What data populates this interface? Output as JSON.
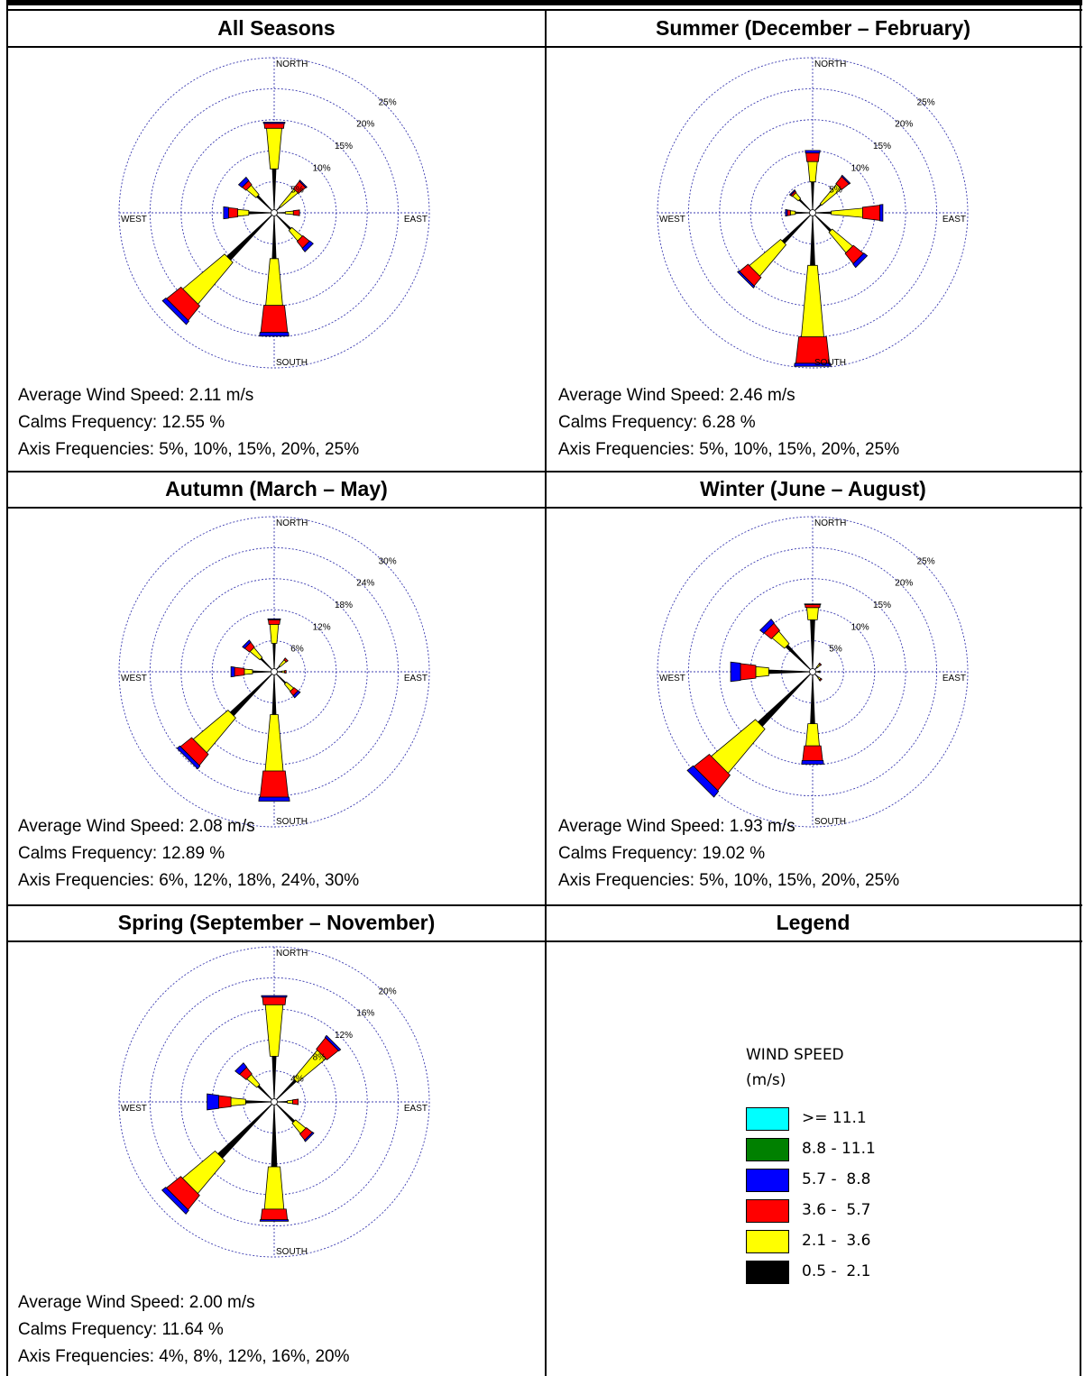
{
  "legend": {
    "header": "Legend",
    "title_line1": "WIND SPEED",
    "title_line2": "(m/s)",
    "bins": [
      {
        "label": ">= 11.1",
        "color": "#00ffff"
      },
      {
        "label": "8.8 - 11.1",
        "color": "#008000"
      },
      {
        "label": "5.7 -  8.8",
        "color": "#0000ff"
      },
      {
        "label": "3.6 -  5.7",
        "color": "#ff0000"
      },
      {
        "label": "2.1 -  3.6",
        "color": "#ffff00"
      },
      {
        "label": "0.5 -  2.1",
        "color": "#000000"
      }
    ]
  },
  "compass": {
    "north": "NORTH",
    "south": "SOUTH",
    "east": "EAST",
    "west": "WEST"
  },
  "chart_data": [
    {
      "type": "windrose",
      "title": "All Seasons",
      "avg_label": "Average Wind Speed:  2.11 m/s",
      "calms_label": "Calms Frequency:  12.55 %",
      "axis_label": "Axis Frequencies:  5%, 10%, 15%, 20%, 25%",
      "rings": [
        5,
        10,
        15,
        20,
        25
      ],
      "ring_labels": [
        "5%",
        "10%",
        "15%",
        "20%",
        "25%"
      ],
      "bins_order": [
        "0.5-2.1",
        "2.1-3.6",
        "3.6-5.7",
        "5.7-8.8"
      ],
      "directions": [
        {
          "dir": "N",
          "values": [
            6.6,
            6.6,
            0.8,
            0.2
          ]
        },
        {
          "dir": "NE",
          "values": [
            0.8,
            3.7,
            1.5,
            0.2
          ]
        },
        {
          "dir": "E",
          "values": [
            1.3,
            1.3,
            1.0,
            0.0
          ]
        },
        {
          "dir": "SE",
          "values": [
            3.2,
            2.2,
            1.4,
            0.7
          ]
        },
        {
          "dir": "S",
          "values": [
            6.9,
            7.6,
            4.4,
            0.6
          ]
        },
        {
          "dir": "SW",
          "values": [
            9.9,
            8.8,
            3.0,
            0.7
          ]
        },
        {
          "dir": "W",
          "values": [
            3.6,
            1.8,
            1.5,
            0.8
          ]
        },
        {
          "dir": "NW",
          "values": [
            3.3,
            2.0,
            0.8,
            0.7
          ]
        }
      ]
    },
    {
      "type": "windrose",
      "title": "Summer (December – February)",
      "avg_label": "Average Wind Speed:  2.46 m/s",
      "calms_label": "Calms Frequency:  6.28 %",
      "axis_label": "Axis Frequencies:  5%, 10%, 15%, 20%, 25%",
      "rings": [
        5,
        10,
        15,
        20,
        25
      ],
      "ring_labels": [
        "5%",
        "10%",
        "15%",
        "20%",
        "25%"
      ],
      "bins_order": [
        "0.5-2.1",
        "2.1-3.6",
        "3.6-5.7",
        "5.7-8.8"
      ],
      "directions": [
        {
          "dir": "N",
          "values": [
            4.5,
            3.3,
            1.4,
            0.4
          ]
        },
        {
          "dir": "NE",
          "values": [
            1.4,
            4.1,
            1.5,
            0.2
          ]
        },
        {
          "dir": "E",
          "values": [
            2.5,
            5.1,
            2.8,
            0.5
          ]
        },
        {
          "dir": "SE",
          "values": [
            3.6,
            4.3,
            2.1,
            0.7
          ]
        },
        {
          "dir": "S",
          "values": [
            8.0,
            11.6,
            4.3,
            0.5
          ]
        },
        {
          "dir": "SW",
          "values": [
            6.2,
            6.6,
            1.8,
            0.3
          ]
        },
        {
          "dir": "W",
          "values": [
            2.3,
            0.8,
            0.5,
            0.3
          ]
        },
        {
          "dir": "NW",
          "values": [
            2.5,
            1.2,
            0.3,
            0.2
          ]
        }
      ]
    },
    {
      "type": "windrose",
      "title": "Autumn (March – May)",
      "avg_label": "Average Wind Speed:  2.08 m/s",
      "calms_label": "Calms Frequency:  12.89 %",
      "axis_label": "Axis Frequencies:  6%, 12%, 18%, 24%, 30%",
      "rings": [
        6,
        12,
        18,
        24,
        30
      ],
      "ring_labels": [
        "6%",
        "12%",
        "18%",
        "24%",
        "30%"
      ],
      "bins_order": [
        "0.5-2.1",
        "2.1-3.6",
        "3.6-5.7",
        "5.7-8.8"
      ],
      "directions": [
        {
          "dir": "N",
          "values": [
            4.9,
            3.7,
            0.9,
            0.2
          ]
        },
        {
          "dir": "NE",
          "values": [
            0.9,
            1.5,
            0.4,
            0.0
          ]
        },
        {
          "dir": "E",
          "values": [
            0.9,
            0.5,
            0.3,
            0.0
          ]
        },
        {
          "dir": "SE",
          "values": [
            2.5,
            1.8,
            1.0,
            0.5
          ]
        },
        {
          "dir": "S",
          "values": [
            7.7,
            11.0,
            5.1,
            0.8
          ]
        },
        {
          "dir": "SW",
          "values": [
            11.0,
            8.8,
            2.8,
            0.7
          ]
        },
        {
          "dir": "W",
          "values": [
            3.6,
            1.6,
            1.9,
            0.7
          ]
        },
        {
          "dir": "NW",
          "values": [
            3.0,
            2.5,
            1.2,
            0.5
          ]
        }
      ]
    },
    {
      "type": "windrose",
      "title": "Winter (June – August)",
      "avg_label": "Average Wind Speed:  1.93 m/s",
      "calms_label": "Calms Frequency:  19.02 %",
      "axis_label": "Axis Frequencies:  5%, 10%, 15%, 20%, 25%",
      "rings": [
        5,
        10,
        15,
        20,
        25
      ],
      "ring_labels": [
        "5%",
        "10%",
        "15%",
        "20%",
        "25%"
      ],
      "bins_order": [
        "0.5-2.1",
        "2.1-3.6",
        "3.6-5.7",
        "5.7-8.8"
      ],
      "directions": [
        {
          "dir": "N",
          "values": [
            7.9,
            2.0,
            0.5,
            0.1
          ]
        },
        {
          "dir": "NE",
          "values": [
            0.5,
            0.6,
            0.2,
            0.0
          ]
        },
        {
          "dir": "E",
          "values": [
            0.4,
            0.2,
            0.1,
            0.0
          ]
        },
        {
          "dir": "SE",
          "values": [
            0.8,
            0.4,
            0.2,
            0.0
          ]
        },
        {
          "dir": "S",
          "values": [
            7.9,
            3.6,
            2.4,
            0.6
          ]
        },
        {
          "dir": "SW",
          "values": [
            11.5,
            9.3,
            3.2,
            1.2
          ]
        },
        {
          "dir": "W",
          "values": [
            6.6,
            2.1,
            2.5,
            1.6
          ]
        },
        {
          "dir": "NW",
          "values": [
            5.4,
            2.6,
            1.5,
            0.8
          ]
        }
      ]
    },
    {
      "type": "windrose",
      "title": "Spring (September – November)",
      "avg_label": "Average Wind Speed:  2.00 m/s",
      "calms_label": "Calms Frequency:  11.64 %",
      "axis_label": "Axis Frequencies:  4%, 8%, 12%, 16%, 20%",
      "rings": [
        4,
        8,
        12,
        16,
        20
      ],
      "ring_labels": [
        "4%",
        "8%",
        "12%",
        "16%",
        "20%"
      ],
      "bins_order": [
        "0.5-2.1",
        "2.1-3.6",
        "3.6-5.7",
        "5.7-8.8"
      ],
      "directions": [
        {
          "dir": "N",
          "values": [
            5.5,
            6.7,
            1.0,
            0.2
          ]
        },
        {
          "dir": "NE",
          "values": [
            3.5,
            4.8,
            1.9,
            0.3
          ]
        },
        {
          "dir": "E",
          "values": [
            1.3,
            0.7,
            0.7,
            0.0
          ]
        },
        {
          "dir": "SE",
          "values": [
            3.2,
            1.7,
            1.0,
            0.2
          ]
        },
        {
          "dir": "S",
          "values": [
            8.0,
            5.5,
            1.4,
            0.2
          ]
        },
        {
          "dir": "SW",
          "values": [
            9.5,
            5.5,
            2.4,
            0.6
          ]
        },
        {
          "dir": "W",
          "values": [
            3.3,
            1.9,
            1.6,
            1.5
          ]
        },
        {
          "dir": "NW",
          "values": [
            2.5,
            1.7,
            1.1,
            0.7
          ]
        }
      ]
    }
  ]
}
